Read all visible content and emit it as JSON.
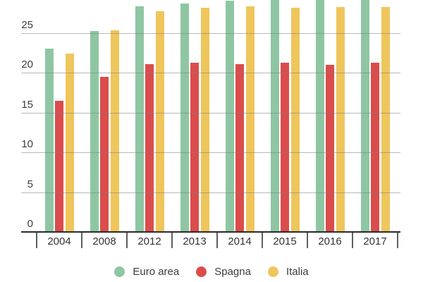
{
  "chart_data": {
    "type": "bar",
    "title": "",
    "categories": [
      "2004",
      "2008",
      "2012",
      "2013",
      "2014",
      "2015",
      "2016",
      "2017"
    ],
    "series": [
      {
        "name": "Euro area",
        "color": "#8EC6A3",
        "values": [
          23.0,
          25.2,
          28.3,
          28.7,
          29.0,
          29.5,
          29.5,
          29.6
        ]
      },
      {
        "name": "Spagna",
        "color": "#DB4C4C",
        "values": [
          16.5,
          19.5,
          21.1,
          21.2,
          21.1,
          21.2,
          21.0,
          21.2
        ]
      },
      {
        "name": "Italia",
        "color": "#EFC65C",
        "values": [
          22.4,
          25.3,
          27.7,
          28.1,
          28.3,
          28.1,
          28.2,
          28.2
        ]
      }
    ],
    "xlabel": "",
    "ylabel": "",
    "yticks": [
      0,
      5,
      10,
      15,
      20,
      25
    ],
    "ylim_visible": [
      0,
      29.1
    ],
    "grid": "horizontal gridlines drawn over bars",
    "legend_position": "bottom-center",
    "note": "Tops of Euro area bars for 2015-2017 are clipped by the top edge of the image"
  },
  "colors": {
    "background": "#ffffff",
    "axis_line": "#2b2b2b",
    "gridline": "#b0b0b0",
    "tick": "#5f5f5f",
    "label_text": "#3c3c3c"
  }
}
